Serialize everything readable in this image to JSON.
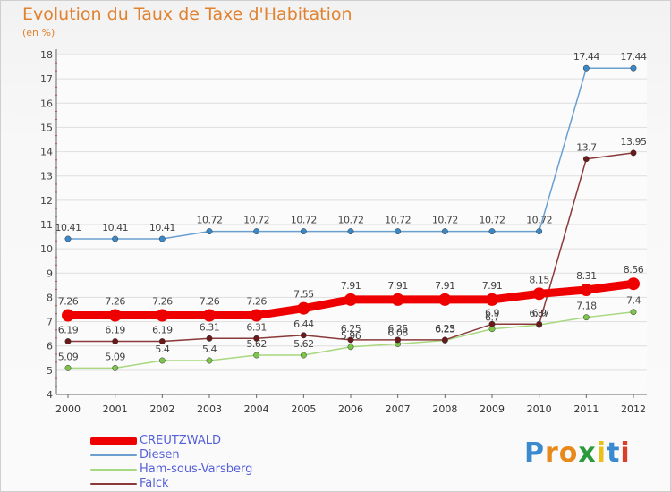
{
  "chart_data": {
    "type": "line",
    "title": "Evolution du Taux de Taxe d'Habitation",
    "subtitle": "(en %)",
    "xlabel": "",
    "ylabel": "",
    "categories": [
      "2000",
      "2001",
      "2002",
      "2003",
      "2004",
      "2005",
      "2006",
      "2007",
      "2008",
      "2009",
      "2010",
      "2011",
      "2012"
    ],
    "ylim": [
      4,
      18
    ],
    "yticks": [
      4,
      5,
      6,
      7,
      8,
      9,
      10,
      11,
      12,
      13,
      14,
      15,
      16,
      17,
      18
    ],
    "grid": "horizontal",
    "legend_position": "bottom-left",
    "series": [
      {
        "name": "Diesen",
        "color": "#6a9fd0",
        "marker_color": "#3b88c8",
        "width": "thin",
        "values": [
          10.41,
          10.41,
          10.41,
          10.72,
          10.72,
          10.72,
          10.72,
          10.72,
          10.72,
          10.72,
          10.72,
          17.44,
          17.44
        ],
        "labels": [
          "10.41",
          "10.41",
          "10.41",
          "10.72",
          "10.72",
          "10.72",
          "10.72",
          "10.72",
          "10.72",
          "10.72",
          "10.72",
          "17.44",
          "17.44"
        ]
      },
      {
        "name": "Ham-sous-Varsberg",
        "color": "#a8d880",
        "marker_color": "#7cc44a",
        "width": "thin",
        "values": [
          5.09,
          5.09,
          5.4,
          5.4,
          5.62,
          5.62,
          5.96,
          6.08,
          6.23,
          6.7,
          6.87,
          7.18,
          7.4
        ],
        "labels": [
          "5.09",
          "5.09",
          "5.4",
          "5.4",
          "5.62",
          "5.62",
          "5.96",
          "6.08",
          "6.23",
          "6.7",
          "6.87",
          "7.18",
          "7.4"
        ]
      },
      {
        "name": "Falck",
        "color": "#8a3a3a",
        "marker_color": "#6a1a1a",
        "width": "thin",
        "values": [
          6.19,
          6.19,
          6.19,
          6.31,
          6.31,
          6.44,
          6.25,
          6.25,
          6.25,
          6.9,
          6.9,
          13.7,
          13.95
        ],
        "labels": [
          "6.19",
          "6.19",
          "6.19",
          "6.31",
          "6.31",
          "6.44",
          "6.25",
          "6.25",
          "6.25",
          "6.9",
          "6.9",
          "13.7",
          "13.95"
        ]
      },
      {
        "name": "CREUTZWALD",
        "color": "#ee0000",
        "marker_color": "#ee0000",
        "width": "thick",
        "values": [
          7.26,
          7.26,
          7.26,
          7.26,
          7.26,
          7.55,
          7.91,
          7.91,
          7.91,
          7.91,
          8.15,
          8.31,
          8.56
        ],
        "labels": [
          "7.26",
          "7.26",
          "7.26",
          "7.26",
          "7.26",
          "7.55",
          "7.91",
          "7.91",
          "7.91",
          "7.91",
          "8.15",
          "8.31",
          "8.56"
        ]
      }
    ],
    "legend": [
      "CREUTZWALD",
      "Diesen",
      "Ham-sous-Varsberg",
      "Falck"
    ]
  },
  "logo": {
    "letters": [
      "P",
      "r",
      "o",
      "x",
      "i",
      "t",
      "i"
    ],
    "colors": [
      "#3a8ad0",
      "#e88a1a",
      "#e88a1a",
      "#2a9a3a",
      "#e8c21a",
      "#3a8ad0",
      "#d8402a"
    ]
  }
}
